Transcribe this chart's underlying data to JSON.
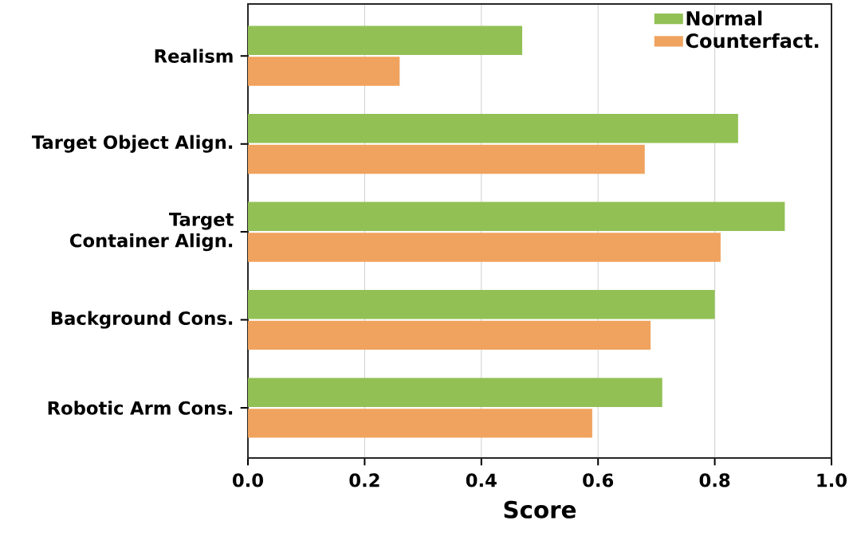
{
  "chart_data": {
    "type": "bar",
    "orientation": "horizontal",
    "xlabel": "Score",
    "categories": [
      "Realism",
      "Target Object Align.",
      "Target Container Align.",
      "Background Cons.",
      "Robotic Arm Cons."
    ],
    "series": [
      {
        "name": "Normal",
        "color": "#92c055",
        "values": [
          0.47,
          0.84,
          0.92,
          0.8,
          0.71
        ]
      },
      {
        "name": "Counterfact.",
        "color": "#f0a35e",
        "values": [
          0.26,
          0.68,
          0.81,
          0.69,
          0.59
        ]
      }
    ],
    "xlim": [
      0,
      1
    ],
    "xticks": [
      {
        "value": 0,
        "label": "0.0"
      },
      {
        "value": 0.2,
        "label": "0.2"
      },
      {
        "value": 0.4,
        "label": "0.4"
      },
      {
        "value": 0.6,
        "label": "0.6"
      },
      {
        "value": 0.8,
        "label": "0.8"
      },
      {
        "value": 1,
        "label": "1.0"
      }
    ],
    "grid": "x",
    "legend": "top right"
  }
}
